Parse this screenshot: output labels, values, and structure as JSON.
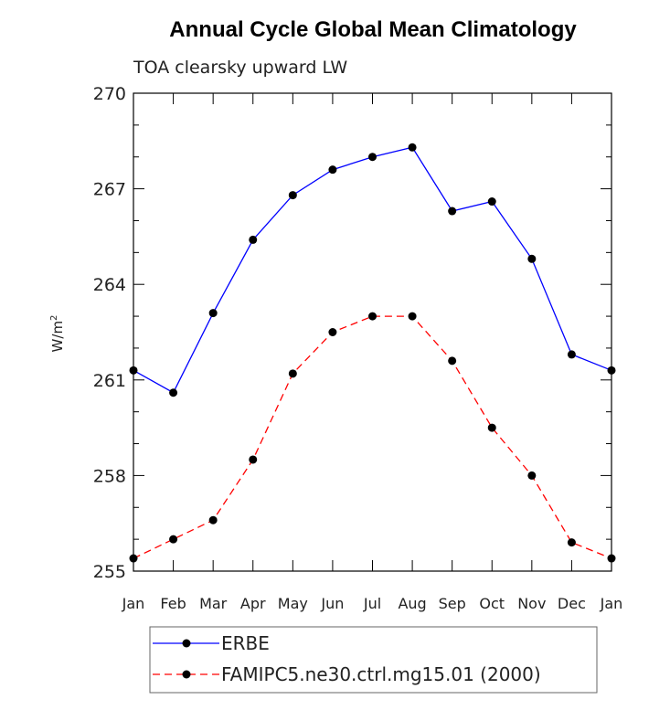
{
  "chart_data": {
    "type": "line",
    "title": "Annual Cycle Global Mean Climatology",
    "subtitle": "TOA clearsky upward LW",
    "ylabel": "W/m",
    "ylabel_sup": "2",
    "xlabel": "",
    "ylim": [
      255,
      270
    ],
    "yticks": [
      255,
      258,
      261,
      264,
      267,
      270
    ],
    "categories": [
      "Jan",
      "Feb",
      "Mar",
      "Apr",
      "May",
      "Jun",
      "Jul",
      "Aug",
      "Sep",
      "Oct",
      "Nov",
      "Dec",
      "Jan"
    ],
    "grid": false,
    "legend_position": "bottom",
    "series": [
      {
        "name": "ERBE",
        "color": "#0000ff",
        "dash": "solid",
        "marker": "circle",
        "values": [
          261.3,
          260.6,
          263.1,
          265.4,
          266.8,
          267.6,
          268.0,
          268.3,
          266.3,
          266.6,
          264.8,
          261.8,
          261.3
        ]
      },
      {
        "name": "FAMIPC5.ne30.ctrl.mg15.01 (2000)",
        "color": "#ff0000",
        "dash": "dashed",
        "marker": "circle",
        "values": [
          255.4,
          256.0,
          256.6,
          258.5,
          261.2,
          262.5,
          263.0,
          263.0,
          261.6,
          259.5,
          258.0,
          255.9,
          255.4
        ]
      }
    ]
  }
}
